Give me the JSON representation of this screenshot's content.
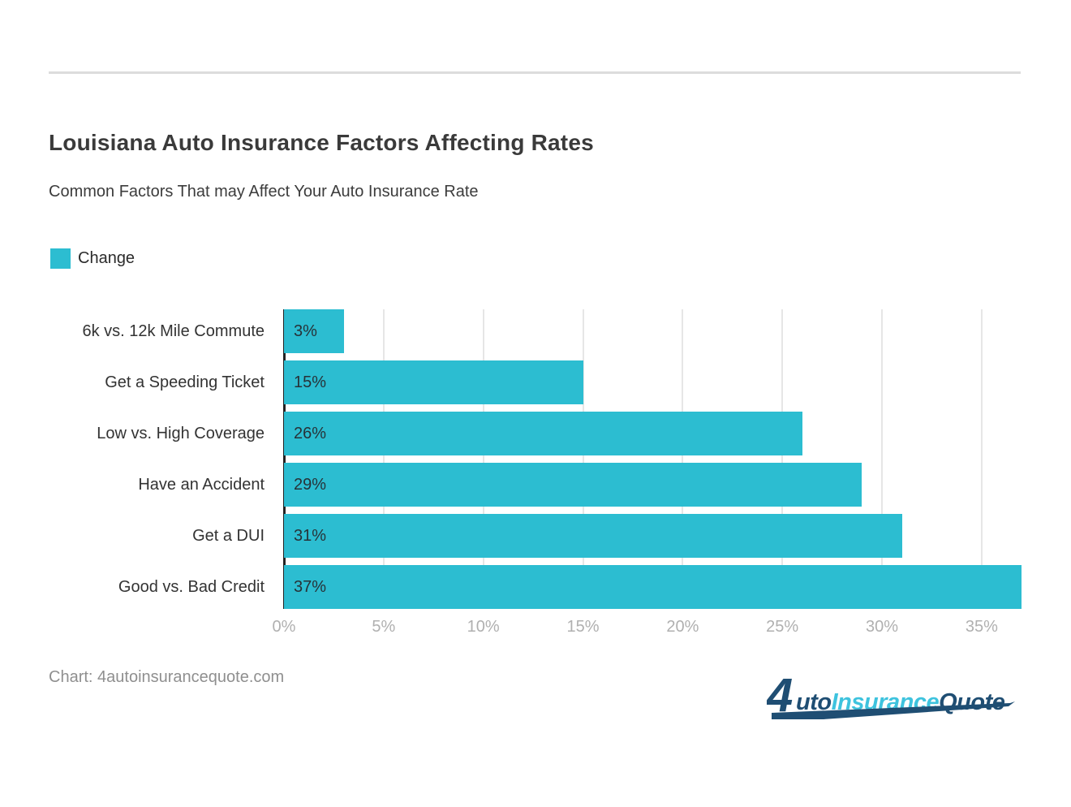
{
  "chart_data": {
    "type": "bar",
    "orientation": "horizontal",
    "title": "Louisiana Auto Insurance Factors Affecting Rates",
    "subtitle": "Common Factors That may Affect Your Auto Insurance Rate",
    "legend": {
      "position": "top-left",
      "entries": [
        {
          "label": "Change",
          "color": "#2CBDD1"
        }
      ]
    },
    "categories": [
      "6k vs. 12k Mile Commute",
      "Get a Speeding Ticket",
      "Low vs. High Coverage",
      "Have an Accident",
      "Get a DUI",
      "Good vs. Bad Credit"
    ],
    "series": [
      {
        "name": "Change",
        "values": [
          3,
          15,
          26,
          29,
          31,
          37
        ],
        "value_labels": [
          "3%",
          "15%",
          "26%",
          "29%",
          "31%",
          "37%"
        ],
        "color": "#2CBDD1"
      }
    ],
    "xlabel": "",
    "ylabel": "",
    "xlim": [
      0,
      37
    ],
    "x_ticks": [
      {
        "value": 0,
        "label": "0%"
      },
      {
        "value": 5,
        "label": "5%"
      },
      {
        "value": 10,
        "label": "10%"
      },
      {
        "value": 15,
        "label": "15%"
      },
      {
        "value": 20,
        "label": "20%"
      },
      {
        "value": 25,
        "label": "25%"
      },
      {
        "value": 30,
        "label": "30%"
      },
      {
        "value": 35,
        "label": "35%"
      }
    ],
    "grid": "vertical"
  },
  "footer": {
    "source": "Chart: 4autoinsurancequote.com"
  },
  "logo": {
    "alt": "AutoInsuranceQuote",
    "segments": [
      {
        "text": "4",
        "color": "#1F4E73"
      },
      {
        "text": "uto",
        "color": "#1F4E73"
      },
      {
        "text": "Insurance",
        "color": "#3EC3DE"
      },
      {
        "text": "Quote",
        "color": "#1F4E73"
      }
    ]
  }
}
